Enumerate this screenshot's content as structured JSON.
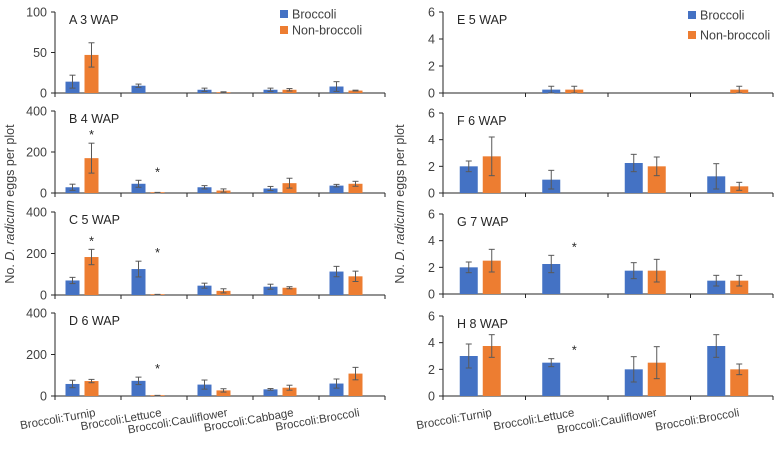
{
  "colors": {
    "broccoli": "#4472C4",
    "non_broccoli": "#ED7D31",
    "axis": "#262626",
    "error": "#595959"
  },
  "chart_data": [
    {
      "type": "bar",
      "id": "A",
      "panel_label": "A",
      "title": "3 WAP",
      "column": "left",
      "categories": [
        "Broccoli:Turnip",
        "Broccoli:Lettuce",
        "Broccoli:Cauliflower",
        "Broccoli:Cabbage",
        "Broccoli:Broccoli"
      ],
      "ylim": [
        0,
        100
      ],
      "yticks": [
        0,
        50,
        100
      ],
      "series": [
        {
          "name": "Broccoli",
          "values": [
            14,
            9,
            4,
            4,
            8
          ],
          "errors": [
            8,
            2,
            2,
            2,
            6
          ]
        },
        {
          "name": "Non-broccoli",
          "values": [
            47,
            null,
            1,
            4,
            3
          ],
          "errors": [
            15,
            null,
            0.5,
            1.5,
            0.5
          ]
        }
      ],
      "significance": [],
      "show_legend": true,
      "show_category_labels": false
    },
    {
      "type": "bar",
      "id": "B",
      "panel_label": "B",
      "title": "4 WAP",
      "column": "left",
      "categories": [
        "Broccoli:Turnip",
        "Broccoli:Lettuce",
        "Broccoli:Cauliflower",
        "Broccoli:Cabbage",
        "Broccoli:Broccoli"
      ],
      "ylim": [
        0,
        400
      ],
      "yticks": [
        0,
        200,
        400
      ],
      "series": [
        {
          "name": "Broccoli",
          "values": [
            28,
            45,
            28,
            22,
            36
          ],
          "errors": [
            15,
            17,
            8,
            10,
            6
          ]
        },
        {
          "name": "Non-broccoli",
          "values": [
            170,
            2,
            12,
            48,
            45
          ],
          "errors": [
            73,
            1,
            8,
            24,
            12
          ]
        }
      ],
      "significance": [
        0,
        1
      ],
      "show_legend": false,
      "show_category_labels": false
    },
    {
      "type": "bar",
      "id": "C",
      "panel_label": "C",
      "title": "5 WAP",
      "column": "left",
      "categories": [
        "Broccoli:Turnip",
        "Broccoli:Lettuce",
        "Broccoli:Cauliflower",
        "Broccoli:Cabbage",
        "Broccoli:Broccoli"
      ],
      "ylim": [
        0,
        400
      ],
      "yticks": [
        0,
        200,
        400
      ],
      "series": [
        {
          "name": "Broccoli",
          "values": [
            70,
            125,
            45,
            40,
            113
          ],
          "errors": [
            15,
            38,
            12,
            12,
            25
          ]
        },
        {
          "name": "Non-broccoli",
          "values": [
            183,
            2,
            20,
            35,
            90
          ],
          "errors": [
            37,
            1,
            10,
            5,
            25
          ]
        }
      ],
      "significance": [
        0,
        1
      ],
      "show_legend": false,
      "show_category_labels": false
    },
    {
      "type": "bar",
      "id": "D",
      "panel_label": "D",
      "title": "6 WAP",
      "column": "left",
      "categories": [
        "Broccoli:Turnip",
        "Broccoli:Lettuce",
        "Broccoli:Cauliflower",
        "Broccoli:Cabbage",
        "Broccoli:Broccoli"
      ],
      "ylim": [
        0,
        400
      ],
      "yticks": [
        0,
        200,
        400
      ],
      "series": [
        {
          "name": "Broccoli",
          "values": [
            58,
            73,
            55,
            32,
            60
          ],
          "errors": [
            18,
            18,
            22,
            4,
            22
          ]
        },
        {
          "name": "Non-broccoli",
          "values": [
            72,
            2,
            27,
            40,
            108
          ],
          "errors": [
            8,
            1,
            8,
            12,
            30
          ]
        }
      ],
      "significance": [
        1
      ],
      "show_legend": false,
      "show_category_labels": true
    },
    {
      "type": "bar",
      "id": "E",
      "panel_label": "E",
      "title": "5 WAP",
      "column": "right",
      "categories": [
        "Broccoli:Turnip",
        "Broccoli:Lettuce",
        "Broccoli:Cauliflower",
        "Broccoli:Broccoli"
      ],
      "ylim": [
        0,
        6
      ],
      "yticks": [
        0,
        2,
        4,
        6
      ],
      "series": [
        {
          "name": "Broccoli",
          "values": [
            null,
            0.25,
            null,
            null
          ],
          "errors": [
            null,
            0.25,
            null,
            null
          ]
        },
        {
          "name": "Non-broccoli",
          "values": [
            null,
            0.25,
            null,
            0.25
          ],
          "errors": [
            null,
            0.25,
            null,
            0.25
          ]
        }
      ],
      "significance": [],
      "show_legend": true,
      "show_category_labels": false
    },
    {
      "type": "bar",
      "id": "F",
      "panel_label": "F",
      "title": "6 WAP",
      "column": "right",
      "categories": [
        "Broccoli:Turnip",
        "Broccoli:Lettuce",
        "Broccoli:Cauliflower",
        "Broccoli:Broccoli"
      ],
      "ylim": [
        0,
        6
      ],
      "yticks": [
        0,
        2,
        4,
        6
      ],
      "series": [
        {
          "name": "Broccoli",
          "values": [
            2.0,
            1.0,
            2.25,
            1.25
          ],
          "errors": [
            0.4,
            0.7,
            0.65,
            0.95
          ]
        },
        {
          "name": "Non-broccoli",
          "values": [
            2.75,
            null,
            2.0,
            0.5
          ],
          "errors": [
            1.45,
            null,
            0.7,
            0.3
          ]
        }
      ],
      "significance": [],
      "show_legend": false,
      "show_category_labels": false
    },
    {
      "type": "bar",
      "id": "G",
      "panel_label": "G",
      "title": "7 WAP",
      "column": "right",
      "categories": [
        "Broccoli:Turnip",
        "Broccoli:Lettuce",
        "Broccoli:Cauliflower",
        "Broccoli:Broccoli"
      ],
      "ylim": [
        0,
        6
      ],
      "yticks": [
        0,
        2,
        4,
        6
      ],
      "series": [
        {
          "name": "Broccoli",
          "values": [
            2.0,
            2.25,
            1.75,
            1.0
          ],
          "errors": [
            0.4,
            0.65,
            0.6,
            0.4
          ]
        },
        {
          "name": "Non-broccoli",
          "values": [
            2.5,
            null,
            1.75,
            1.0
          ],
          "errors": [
            0.85,
            null,
            0.85,
            0.4
          ]
        }
      ],
      "significance": [
        1
      ],
      "show_legend": false,
      "show_category_labels": false
    },
    {
      "type": "bar",
      "id": "H",
      "panel_label": "H",
      "title": "8 WAP",
      "column": "right",
      "categories": [
        "Broccoli:Turnip",
        "Broccoli:Lettuce",
        "Broccoli:Cauliflower",
        "Broccoli:Broccoli"
      ],
      "ylim": [
        0,
        6
      ],
      "yticks": [
        0,
        2,
        4,
        6
      ],
      "series": [
        {
          "name": "Broccoli",
          "values": [
            3.0,
            2.5,
            2.0,
            3.75
          ],
          "errors": [
            0.9,
            0.3,
            0.95,
            0.85
          ]
        },
        {
          "name": "Non-broccoli",
          "values": [
            3.75,
            null,
            2.5,
            2.0
          ],
          "errors": [
            0.85,
            null,
            1.2,
            0.4
          ]
        }
      ],
      "significance": [
        1
      ],
      "show_legend": false,
      "show_category_labels": true
    }
  ],
  "legend": {
    "items": [
      "Broccoli",
      "Non-broccoli"
    ]
  },
  "ylabel": {
    "prefix": "No. ",
    "italic": "D. radicum",
    "suffix": " eggs per plot"
  },
  "significance_marker": "*"
}
